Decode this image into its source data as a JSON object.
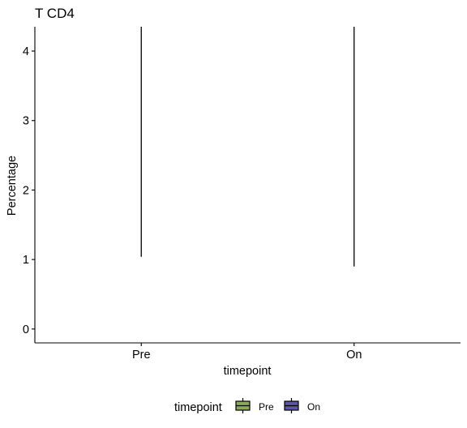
{
  "chart_data": {
    "type": "box",
    "title": "T CD4",
    "xlabel": "timepoint",
    "ylabel": "Percentage",
    "categories": [
      "Pre",
      "On"
    ],
    "ylim": [
      -0.2,
      4.35
    ],
    "yticks": [
      0,
      1,
      2,
      3,
      4
    ],
    "series": [
      {
        "category": "Pre",
        "whisker_low": 1.04,
        "whisker_high": 4.35,
        "color": "#8aab5a"
      },
      {
        "category": "On",
        "whisker_low": 0.9,
        "whisker_high": 4.35,
        "color": "#5b57a0"
      }
    ],
    "legend": {
      "title": "timepoint",
      "position": "bottom",
      "entries": [
        {
          "label": "Pre",
          "color": "#8aab5a"
        },
        {
          "label": "On",
          "color": "#5b57a0"
        }
      ]
    }
  }
}
